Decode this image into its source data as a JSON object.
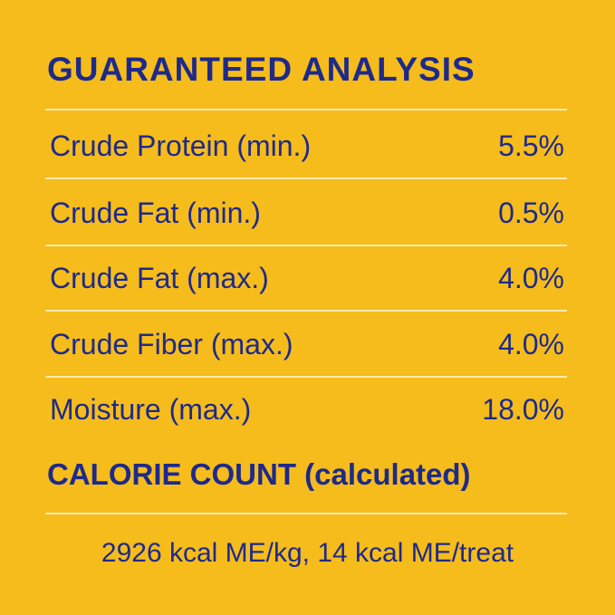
{
  "title": "GUARANTEED ANALYSIS",
  "rows": [
    {
      "label": "Crude Protein (min.)",
      "value": "5.5%"
    },
    {
      "label": "Crude Fat (min.)",
      "value": "0.5%"
    },
    {
      "label": "Crude Fat (max.)",
      "value": "4.0%"
    },
    {
      "label": "Crude Fiber (max.)",
      "value": "4.0%"
    },
    {
      "label": "Moisture (max.)",
      "value": "18.0%"
    }
  ],
  "calorie": {
    "title": "CALORIE COUNT (calculated)",
    "text": "2926 kcal ME/kg, 14 kcal ME/treat"
  }
}
